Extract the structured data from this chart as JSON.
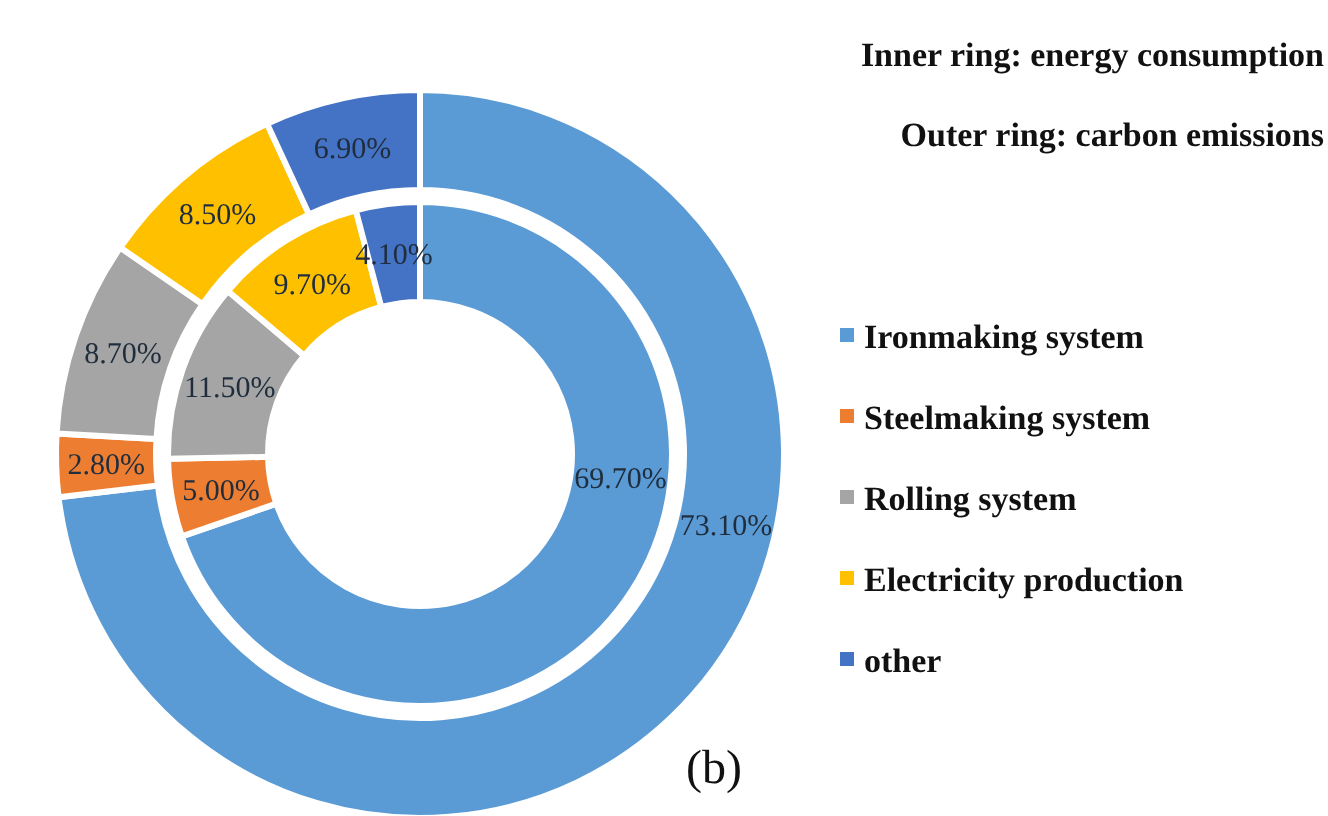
{
  "chart_data": {
    "type": "donut",
    "categories": [
      "Ironmaking system",
      "Steelmaking system",
      "Rolling system",
      "Electricity production",
      "other"
    ],
    "colors": [
      "#5b9bd5",
      "#ed7d31",
      "#a5a5a5",
      "#ffc000",
      "#4472c4"
    ],
    "series": [
      {
        "values": [
          69.7,
          5.0,
          11.5,
          9.7,
          4.1
        ],
        "value_labels": [
          "69.70%",
          "5.00%",
          "11.50%",
          "9.70%",
          "4.10%"
        ]
      },
      {
        "values": [
          73.1,
          2.8,
          8.7,
          8.5,
          6.9
        ],
        "value_labels": [
          "73.10%",
          "2.80%",
          "8.70%",
          "8.50%",
          "6.90%"
        ]
      }
    ],
    "annotations": [
      "Inner ring: energy consumption",
      "Outer ring: carbon emissions",
      "(b)"
    ],
    "legend": "right"
  }
}
